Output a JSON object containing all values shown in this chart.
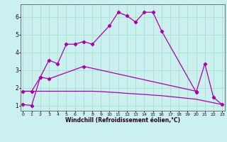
{
  "xlabel": "Windchill (Refroidissement éolien,°C)",
  "background_color": "#caf0f0",
  "grid_color": "#aaddcc",
  "line_color": "#aa00aa",
  "x_ticks": [
    0,
    1,
    2,
    3,
    4,
    5,
    6,
    7,
    8,
    9,
    10,
    11,
    12,
    13,
    14,
    15,
    16,
    17,
    18,
    19,
    20,
    21,
    22,
    23
  ],
  "y_ticks": [
    1,
    2,
    3,
    4,
    5,
    6
  ],
  "xlim": [
    -0.3,
    23.3
  ],
  "ylim": [
    0.7,
    6.7
  ],
  "line1_x": [
    0,
    1,
    2,
    3,
    4,
    5,
    6,
    7,
    8,
    10,
    11,
    12,
    13,
    14,
    15,
    16,
    20,
    21,
    22,
    23
  ],
  "line1_y": [
    1.05,
    1.0,
    2.6,
    3.55,
    3.35,
    4.45,
    4.45,
    4.6,
    4.45,
    5.5,
    6.25,
    6.05,
    5.7,
    6.25,
    6.25,
    5.2,
    1.75,
    3.35,
    1.45,
    1.05
  ],
  "line2_x": [
    0,
    1,
    2,
    3,
    7,
    20
  ],
  "line2_y": [
    1.8,
    1.8,
    2.6,
    2.5,
    3.2,
    1.8
  ],
  "line3_x": [
    0,
    1,
    2,
    3,
    4,
    5,
    6,
    7,
    8,
    9,
    10,
    11,
    12,
    13,
    14,
    15,
    16,
    17,
    18,
    19,
    20,
    21,
    22,
    23
  ],
  "line3_y": [
    1.8,
    1.8,
    1.8,
    1.8,
    1.8,
    1.8,
    1.8,
    1.8,
    1.8,
    1.78,
    1.75,
    1.72,
    1.68,
    1.65,
    1.62,
    1.58,
    1.55,
    1.5,
    1.45,
    1.4,
    1.35,
    1.25,
    1.15,
    1.05
  ]
}
